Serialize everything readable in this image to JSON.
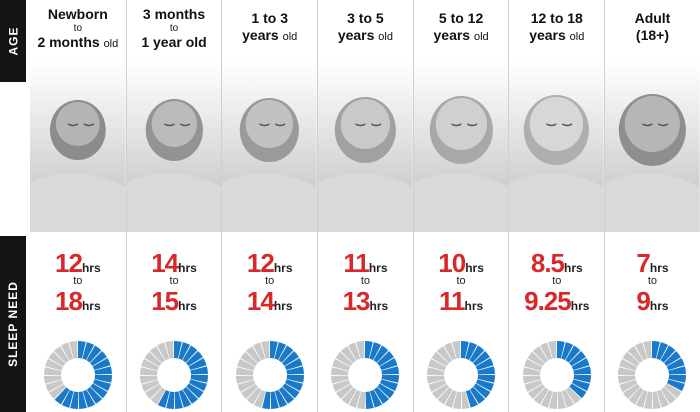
{
  "side_labels": {
    "age": "AGE",
    "sleep": "SLEEP NEED"
  },
  "colors": {
    "accent": "#1a7ac9",
    "ring_bg": "#c8c8c8",
    "number": "#d8282a"
  },
  "columns": [
    {
      "age_line1": "Newborn",
      "age_to": "to",
      "age_line2_main": "2 months",
      "age_line2_unit": "old",
      "sleep_min": "12",
      "sleep_max": "18",
      "unit": "hrs",
      "to": "to",
      "fraction": 0.625
    },
    {
      "age_line1": "3 months",
      "age_to": "to",
      "age_line2_main": "1 year old",
      "age_line2_unit": "",
      "sleep_min": "14",
      "sleep_max": "15",
      "unit": "hrs",
      "to": "to",
      "fraction": 0.6
    },
    {
      "age_line1": "1 to 3",
      "age_to": "",
      "age_line2_main": "years",
      "age_line2_unit": "old",
      "sleep_min": "12",
      "sleep_max": "14",
      "unit": "hrs",
      "to": "to",
      "fraction": 0.55
    },
    {
      "age_line1": "3 to 5",
      "age_to": "",
      "age_line2_main": "years",
      "age_line2_unit": "old",
      "sleep_min": "11",
      "sleep_max": "13",
      "unit": "hrs",
      "to": "to",
      "fraction": 0.5
    },
    {
      "age_line1": "5 to 12",
      "age_to": "",
      "age_line2_main": "years",
      "age_line2_unit": "old",
      "sleep_min": "10",
      "sleep_max": "11",
      "unit": "hrs",
      "to": "to",
      "fraction": 0.44
    },
    {
      "age_line1": "12 to 18",
      "age_to": "",
      "age_line2_main": "years",
      "age_line2_unit": "old",
      "sleep_min": "8.5",
      "sleep_max": "9.25",
      "unit": "hrs",
      "to": "to",
      "fraction": 0.375
    },
    {
      "age_line1": "Adult",
      "age_to": "",
      "age_line2_main": "(18+)",
      "age_line2_unit": "",
      "sleep_min": "7",
      "sleep_max": "9",
      "unit": "hrs",
      "to": "to",
      "fraction": 0.33
    }
  ]
}
